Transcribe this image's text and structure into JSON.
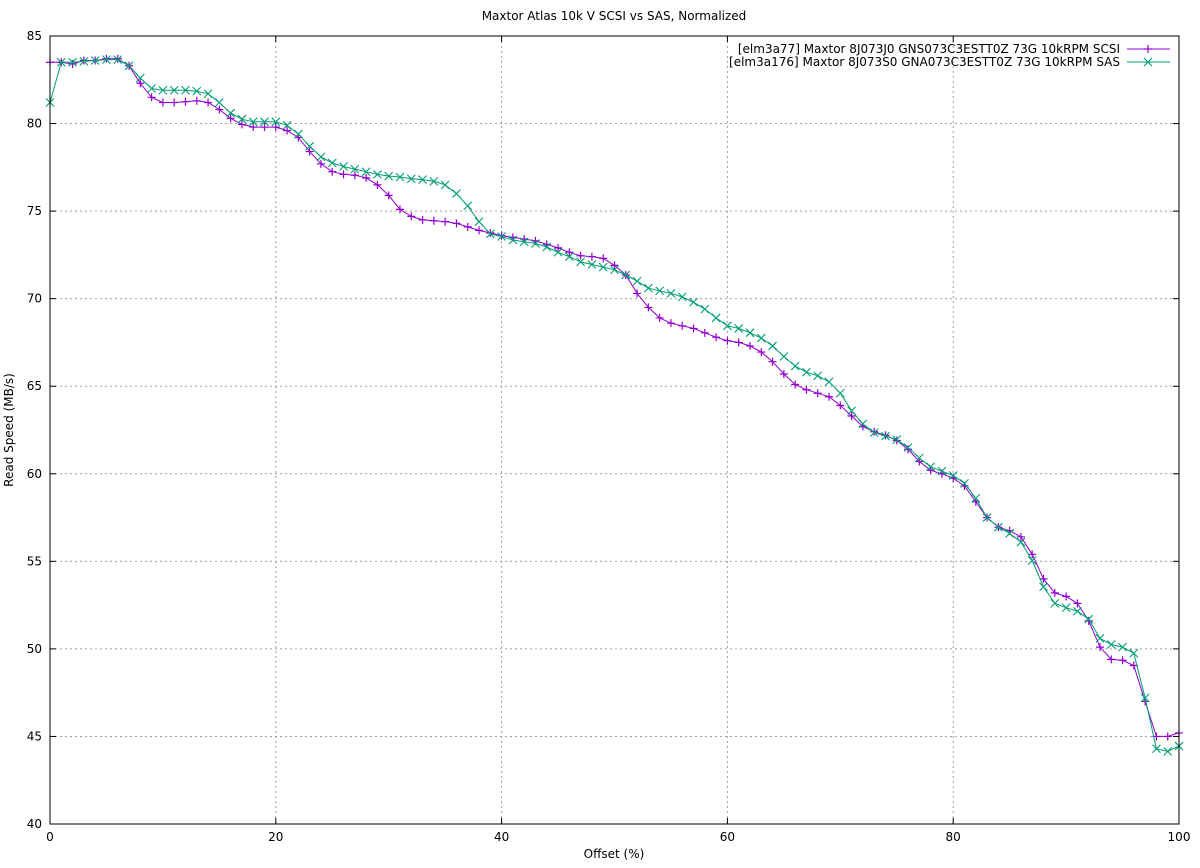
{
  "chart_data": {
    "type": "line",
    "title": "Maxtor Atlas 10k V SCSI vs SAS, Normalized",
    "xlabel": "Offset (%)",
    "ylabel": "Read Speed (MB/s)",
    "xlim": [
      0,
      100
    ],
    "ylim": [
      40,
      85
    ],
    "xticks": [
      0,
      20,
      40,
      60,
      80,
      100
    ],
    "yticks": [
      40,
      45,
      50,
      55,
      60,
      65,
      70,
      75,
      80,
      85
    ],
    "grid": true,
    "legend": "top-right",
    "x": [
      0,
      1,
      2,
      3,
      4,
      5,
      6,
      7,
      8,
      9,
      10,
      11,
      12,
      13,
      14,
      15,
      16,
      17,
      18,
      19,
      20,
      21,
      22,
      23,
      24,
      25,
      26,
      27,
      28,
      29,
      30,
      31,
      32,
      33,
      34,
      35,
      36,
      37,
      38,
      39,
      40,
      41,
      42,
      43,
      44,
      45,
      46,
      47,
      48,
      49,
      50,
      51,
      52,
      53,
      54,
      55,
      56,
      57,
      58,
      59,
      60,
      61,
      62,
      63,
      64,
      65,
      66,
      67,
      68,
      69,
      70,
      71,
      72,
      73,
      74,
      75,
      76,
      77,
      78,
      79,
      80,
      81,
      82,
      83,
      84,
      85,
      86,
      87,
      88,
      89,
      90,
      91,
      92,
      93,
      94,
      95,
      96,
      97,
      98,
      99,
      100
    ],
    "series": [
      {
        "name": "[elm3a77] Maxtor 8J073J0 GNS073C3ESTT0Z 73G 10kRPM SCSI",
        "color": "#9400d3",
        "marker": "plus",
        "values": [
          83.5,
          83.5,
          83.4,
          83.6,
          83.6,
          83.7,
          83.7,
          83.3,
          82.3,
          81.5,
          81.2,
          81.2,
          81.25,
          81.3,
          81.2,
          80.8,
          80.3,
          79.95,
          79.8,
          79.8,
          79.8,
          79.6,
          79.2,
          78.4,
          77.7,
          77.25,
          77.1,
          77.05,
          76.9,
          76.5,
          75.9,
          75.1,
          74.7,
          74.5,
          74.45,
          74.4,
          74.3,
          74.1,
          73.9,
          73.75,
          73.6,
          73.5,
          73.4,
          73.3,
          73.1,
          72.9,
          72.65,
          72.45,
          72.4,
          72.3,
          71.9,
          71.35,
          70.3,
          69.5,
          68.9,
          68.6,
          68.45,
          68.3,
          68.05,
          67.8,
          67.6,
          67.5,
          67.3,
          66.95,
          66.4,
          65.7,
          65.1,
          64.8,
          64.6,
          64.4,
          63.9,
          63.3,
          62.7,
          62.4,
          62.2,
          61.9,
          61.4,
          60.7,
          60.2,
          60.0,
          59.75,
          59.3,
          58.4,
          57.5,
          56.95,
          56.75,
          56.4,
          55.4,
          54.0,
          53.2,
          53.0,
          52.6,
          51.6,
          50.1,
          49.4,
          49.35,
          49.05,
          47.0,
          45.0,
          45.0,
          45.2
        ]
      },
      {
        "name": "[elm3a176] Maxtor 8J073S0 GNA073C3ESTT0Z 73G 10kRPM SAS",
        "color": "#009e73",
        "marker": "cross",
        "values": [
          81.2,
          83.5,
          83.5,
          83.55,
          83.6,
          83.65,
          83.65,
          83.3,
          82.6,
          82.0,
          81.9,
          81.9,
          81.9,
          81.85,
          81.7,
          81.2,
          80.6,
          80.25,
          80.1,
          80.1,
          80.1,
          79.9,
          79.4,
          78.7,
          78.1,
          77.75,
          77.55,
          77.4,
          77.25,
          77.1,
          77.0,
          76.95,
          76.85,
          76.8,
          76.7,
          76.5,
          76.0,
          75.3,
          74.4,
          73.7,
          73.55,
          73.35,
          73.25,
          73.15,
          72.95,
          72.65,
          72.4,
          72.1,
          71.95,
          71.8,
          71.65,
          71.35,
          71.0,
          70.6,
          70.45,
          70.3,
          70.1,
          69.8,
          69.4,
          68.9,
          68.45,
          68.3,
          68.05,
          67.75,
          67.3,
          66.7,
          66.15,
          65.8,
          65.6,
          65.25,
          64.6,
          63.6,
          62.85,
          62.35,
          62.15,
          61.95,
          61.5,
          60.9,
          60.4,
          60.15,
          59.9,
          59.45,
          58.6,
          57.5,
          56.95,
          56.6,
          56.1,
          55.05,
          53.55,
          52.6,
          52.35,
          52.15,
          51.7,
          50.6,
          50.25,
          50.1,
          49.75,
          47.2,
          44.3,
          44.15,
          44.45
        ]
      }
    ]
  }
}
